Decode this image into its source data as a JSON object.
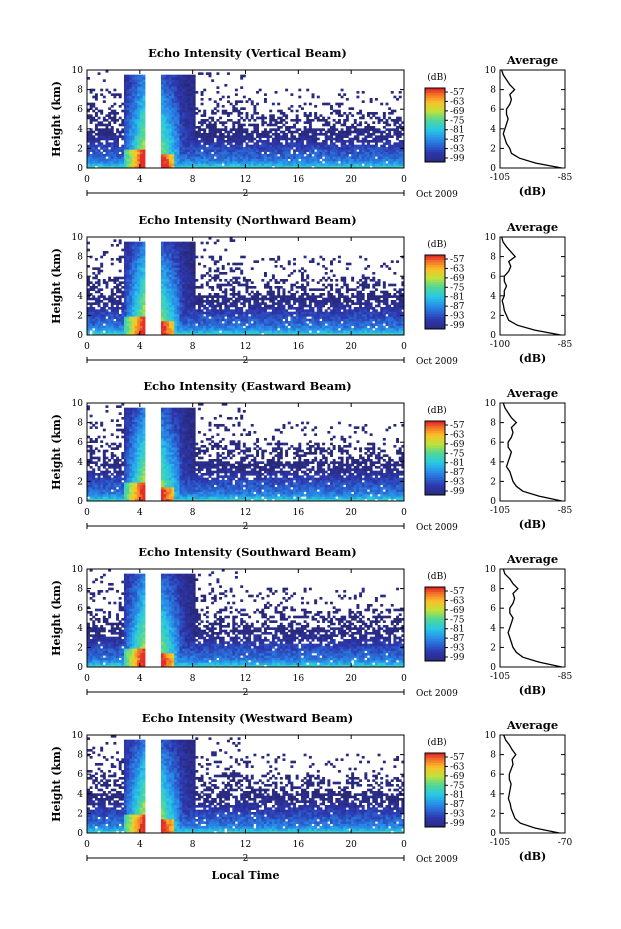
{
  "figure": {
    "footer_label": "Local Time"
  },
  "chart_data": [
    {
      "type": "heatmap",
      "title": "Echo Intensity (Vertical Beam)",
      "xlabel": "",
      "ylabel": "Height (km)",
      "xticks": [
        "0",
        "4",
        "8",
        "12",
        "16",
        "20",
        "0"
      ],
      "yticks": [
        "0",
        "2",
        "4",
        "6",
        "8",
        "10"
      ],
      "xlim": [
        0,
        24
      ],
      "ylim": [
        0,
        10
      ],
      "date_marker": "2",
      "date_label": "Oct 2009",
      "colorbar": {
        "unit": "(dB)",
        "ticks": [
          "-57",
          "-63",
          "-69",
          "-75",
          "-81",
          "-87",
          "-93",
          "-99"
        ]
      },
      "average_profile": {
        "title": "Average",
        "xlabel": "(dB)",
        "xticks": [
          "-105",
          "-85"
        ],
        "xlim": [
          -105,
          -85
        ],
        "yticks": [
          "0",
          "2",
          "4",
          "6",
          "8",
          "10"
        ],
        "height": [
          0,
          0.5,
          1,
          1.5,
          2,
          2.5,
          3,
          3.5,
          4,
          4.5,
          5,
          5.5,
          6,
          6.5,
          7,
          7.5,
          8,
          8.5,
          9,
          9.5,
          10
        ],
        "value": [
          -86,
          -94,
          -99,
          -101.5,
          -102,
          -103,
          -103.5,
          -104,
          -103.5,
          -103,
          -102.5,
          -103,
          -103,
          -102,
          -101.5,
          -102,
          -100.5,
          -102,
          -103,
          -104,
          -104.5
        ]
      }
    },
    {
      "type": "heatmap",
      "title": "Echo Intensity (Northward Beam)",
      "xlabel": "",
      "ylabel": "Height (km)",
      "xticks": [
        "0",
        "4",
        "8",
        "12",
        "16",
        "20",
        "0"
      ],
      "yticks": [
        "0",
        "2",
        "4",
        "6",
        "8",
        "10"
      ],
      "xlim": [
        0,
        24
      ],
      "ylim": [
        0,
        10
      ],
      "date_marker": "2",
      "date_label": "Oct 2009",
      "colorbar": {
        "unit": "(dB)",
        "ticks": [
          "-57",
          "-63",
          "-69",
          "-75",
          "-81",
          "-87",
          "-93",
          "-99"
        ]
      },
      "average_profile": {
        "title": "Average",
        "xlabel": "(dB)",
        "xticks": [
          "-100",
          "-85"
        ],
        "xlim": [
          -100,
          -85
        ],
        "yticks": [
          "0",
          "2",
          "4",
          "6",
          "8",
          "10"
        ],
        "height": [
          0,
          0.5,
          1,
          1.5,
          2,
          2.5,
          3,
          3.5,
          4,
          4.5,
          5,
          5.5,
          6,
          6.5,
          7,
          7.5,
          8,
          8.5,
          9,
          9.5,
          10
        ],
        "value": [
          -86,
          -92,
          -96,
          -98,
          -98.5,
          -99,
          -99.2,
          -99.5,
          -99,
          -99,
          -98.5,
          -99,
          -99,
          -98,
          -97.5,
          -98,
          -96.5,
          -97.5,
          -98.5,
          -99.3,
          -99.6
        ]
      }
    },
    {
      "type": "heatmap",
      "title": "Echo Intensity (Eastward Beam)",
      "xlabel": "",
      "ylabel": "Height (km)",
      "xticks": [
        "0",
        "4",
        "8",
        "12",
        "16",
        "20",
        "0"
      ],
      "yticks": [
        "0",
        "2",
        "4",
        "6",
        "8",
        "10"
      ],
      "xlim": [
        0,
        24
      ],
      "ylim": [
        0,
        10
      ],
      "date_marker": "2",
      "date_label": "Oct 2009",
      "colorbar": {
        "unit": "(dB)",
        "ticks": [
          "-57",
          "-63",
          "-69",
          "-75",
          "-81",
          "-87",
          "-93",
          "-99"
        ]
      },
      "average_profile": {
        "title": "Average",
        "xlabel": "(dB)",
        "xticks": [
          "-105",
          "-85"
        ],
        "xlim": [
          -105,
          -85
        ],
        "yticks": [
          "0",
          "2",
          "4",
          "6",
          "8",
          "10"
        ],
        "height": [
          0,
          0.5,
          1,
          1.5,
          2,
          2.5,
          3,
          3.5,
          4,
          4.5,
          5,
          5.5,
          6,
          6.5,
          7,
          7.5,
          8,
          8.5,
          9,
          9.5,
          10
        ],
        "value": [
          -86,
          -93,
          -98,
          -100,
          -101,
          -101.5,
          -102,
          -103,
          -102.5,
          -102,
          -101.5,
          -102.5,
          -102.5,
          -101.5,
          -101,
          -101.5,
          -100,
          -101.5,
          -102.5,
          -103.5,
          -104
        ]
      }
    },
    {
      "type": "heatmap",
      "title": "Echo Intensity (Southward Beam)",
      "xlabel": "",
      "ylabel": "Height (km)",
      "xticks": [
        "0",
        "4",
        "8",
        "12",
        "16",
        "20",
        "0"
      ],
      "yticks": [
        "0",
        "2",
        "4",
        "6",
        "8",
        "10"
      ],
      "xlim": [
        0,
        24
      ],
      "ylim": [
        0,
        10
      ],
      "date_marker": "2",
      "date_label": "Oct 2009",
      "colorbar": {
        "unit": "(dB)",
        "ticks": [
          "-57",
          "-63",
          "-69",
          "-75",
          "-81",
          "-87",
          "-93",
          "-99"
        ]
      },
      "average_profile": {
        "title": "Average",
        "xlabel": "(dB)",
        "xticks": [
          "-105",
          "-85"
        ],
        "xlim": [
          -105,
          -85
        ],
        "yticks": [
          "0",
          "2",
          "4",
          "6",
          "8",
          "10"
        ],
        "height": [
          0,
          0.5,
          1,
          1.5,
          2,
          2.5,
          3,
          3.5,
          4,
          4.5,
          5,
          5.5,
          6,
          6.5,
          7,
          7.5,
          8,
          8.5,
          9,
          9.5,
          10
        ],
        "value": [
          -86,
          -93,
          -98,
          -100,
          -101,
          -101.5,
          -102,
          -102.5,
          -102,
          -101.5,
          -101,
          -102,
          -102,
          -101,
          -100.5,
          -101,
          -99.5,
          -101,
          -102,
          -103.5,
          -104
        ]
      }
    },
    {
      "type": "heatmap",
      "title": "Echo Intensity (Westward Beam)",
      "xlabel": "",
      "ylabel": "Height (km)",
      "xticks": [
        "0",
        "4",
        "8",
        "12",
        "16",
        "20",
        "0"
      ],
      "yticks": [
        "0",
        "2",
        "4",
        "6",
        "8",
        "10"
      ],
      "xlim": [
        0,
        24
      ],
      "ylim": [
        0,
        10
      ],
      "date_marker": "2",
      "date_label": "Oct 2009",
      "colorbar": {
        "unit": "(dB)",
        "ticks": [
          "-57",
          "-63",
          "-69",
          "-75",
          "-81",
          "-87",
          "-93",
          "-99"
        ]
      },
      "average_profile": {
        "title": "Average",
        "xlabel": "(dB)",
        "xticks": [
          "-105",
          "-70"
        ],
        "xlim": [
          -105,
          -70
        ],
        "yticks": [
          "0",
          "2",
          "4",
          "6",
          "8",
          "10"
        ],
        "height": [
          0,
          0.5,
          1,
          1.5,
          2,
          2.5,
          3,
          3.5,
          4,
          4.5,
          5,
          5.5,
          6,
          6.5,
          7,
          7.5,
          8,
          8.5,
          9,
          9.5,
          10
        ],
        "value": [
          -73,
          -86,
          -94,
          -97,
          -98,
          -99,
          -99.5,
          -100.5,
          -100,
          -99.5,
          -99,
          -100,
          -100,
          -99,
          -98,
          -98.5,
          -96.5,
          -98.5,
          -100,
          -102,
          -103
        ]
      }
    }
  ]
}
